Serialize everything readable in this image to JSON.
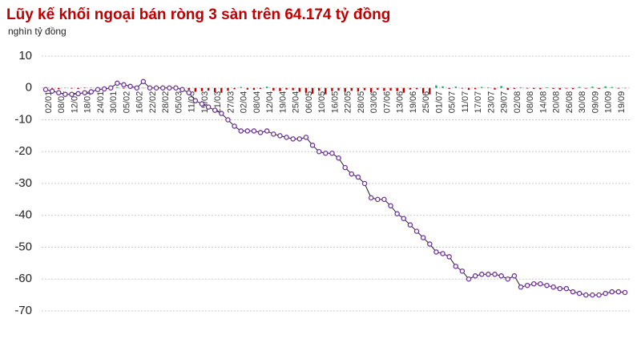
{
  "chart_data": {
    "type": "combo",
    "title": "Lũy kế khối ngoại bán ròng 3 sàn trên 64.174 tỷ đồng",
    "subtitle": "nghìn tỷ đồng",
    "categories": [
      "02/01",
      null,
      "08/01",
      null,
      "12/01",
      null,
      "18/01",
      null,
      "24/01",
      null,
      "30/01",
      null,
      "05/02",
      null,
      "16/02",
      null,
      "22/02",
      null,
      "28/02",
      null,
      "05/03",
      null,
      "11/03",
      null,
      "15/03",
      null,
      "21/03",
      null,
      "27/03",
      null,
      "02/04",
      null,
      "08/04",
      null,
      "12/04",
      null,
      "19/04",
      null,
      "25/04",
      null,
      "06/05",
      null,
      "10/05",
      null,
      "16/05",
      null,
      "22/05",
      null,
      "28/05",
      null,
      "03/06",
      null,
      "07/06",
      null,
      "13/06",
      null,
      "19/06",
      null,
      "25/06",
      null,
      "01/07",
      null,
      "05/07",
      null,
      "11/07",
      null,
      "17/07",
      null,
      "23/07",
      null,
      "29/07",
      null,
      "02/08",
      null,
      "08/08",
      null,
      "14/08",
      null,
      "20/08",
      null,
      "26/08",
      null,
      "30/08",
      null,
      "09/09",
      null,
      "10/09",
      null,
      "19/09",
      null
    ],
    "series": [
      {
        "type": "bar",
        "positive_color": "#00b050",
        "negative_color": "#c00000",
        "values": [
          -0.3,
          -0.2,
          -0.4,
          0.1,
          -0.2,
          -0.3,
          0.2,
          0.1,
          -0.2,
          0.1,
          0.2,
          0.3,
          -0.2,
          -0.3,
          0.2,
          -0.1,
          -0.2,
          0.1,
          0,
          -0.1,
          -0.3,
          -0.4,
          -0.6,
          -1.2,
          -1.0,
          -0.8,
          -1.3,
          -1.5,
          -0.9,
          -0.4,
          0.3,
          -0.5,
          -0.6,
          -0.3,
          0.4,
          -0.8,
          -1.0,
          -0.5,
          -0.7,
          -1.2,
          -1.5,
          -1.8,
          -0.9,
          -2.0,
          -1.0,
          -0.8,
          -1.2,
          -0.9,
          -1.1,
          -0.7,
          -1.3,
          -0.6,
          -0.9,
          -0.8,
          -1.0,
          -1.5,
          -0.5,
          -0.4,
          -1.6,
          -2.0,
          0.8,
          0.5,
          -0.3,
          0.4,
          -0.2,
          -0.6,
          -0.4,
          0.3,
          0.2,
          -0.5,
          0.6,
          -0.6,
          -0.3,
          0.2,
          -0.2,
          -0.3,
          -0.4,
          0.2,
          -0.3,
          -0.5,
          -0.2,
          -0.4,
          0.3,
          -0.2,
          0.4,
          -0.3,
          0.5,
          0.3,
          -0.2,
          -0.1
        ]
      },
      {
        "type": "line",
        "color": "#7030a0",
        "line_color": "#222222",
        "values": [
          -0.5,
          -1,
          -1.5,
          -2,
          -2,
          -1.8,
          -1.5,
          -1.2,
          -0.5,
          -0.3,
          0,
          1.5,
          1,
          0.5,
          0,
          2,
          0,
          0,
          0,
          0,
          0,
          -0.5,
          -1.5,
          -4,
          -5,
          -6,
          -7,
          -8,
          -10,
          -12,
          -13.5,
          -13.5,
          -13.5,
          -14,
          -13.5,
          -14.5,
          -15,
          -15.5,
          -16,
          -16,
          -15.5,
          -18,
          -20,
          -20.5,
          -20.5,
          -22,
          -25,
          -27,
          -28,
          -30,
          -34.5,
          -35,
          -35,
          -37,
          -39.5,
          -41,
          -43,
          -45,
          -47,
          -49,
          -51.5,
          -52,
          -53,
          -56,
          -57.5,
          -60,
          -59,
          -58.5,
          -58.5,
          -58.5,
          -59,
          -60,
          -59,
          -62.5,
          -62,
          -61.5,
          -61.5,
          -62,
          -62.5,
          -63,
          -63,
          -64,
          -64.5,
          -65,
          -65,
          -65,
          -64.5,
          -64,
          -64,
          -64.2
        ]
      }
    ],
    "ylim": [
      -70,
      10
    ],
    "yticks": [
      10,
      0,
      -10,
      -20,
      -30,
      -40,
      -50,
      -60,
      -70
    ],
    "grid": true
  }
}
